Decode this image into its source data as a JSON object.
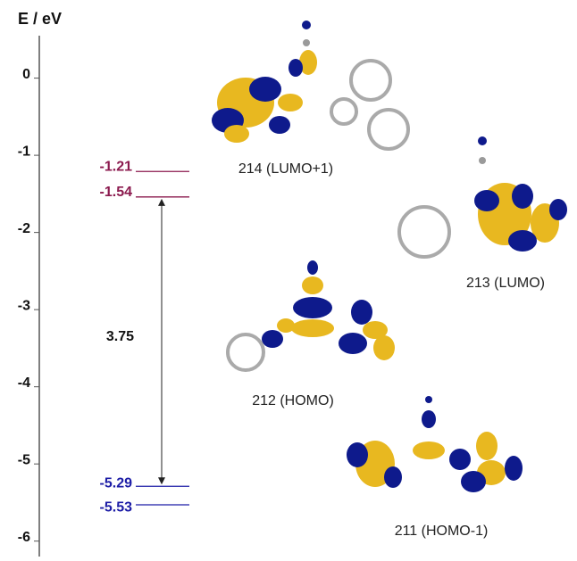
{
  "chart_data": {
    "type": "energy-levels",
    "title": "E / eV",
    "ylim": [
      -6.2,
      0.55
    ],
    "yticks": [
      0,
      -1,
      -2,
      -3,
      -4,
      -5,
      -6
    ],
    "levels": [
      {
        "color": "#8b1a4e",
        "values": [
          -1.21,
          -1.54
        ]
      },
      {
        "color": "#1c1ca6",
        "values": [
          -5.29,
          -5.53
        ]
      }
    ],
    "gap": 3.75,
    "orbitals": [
      "214 (LUMO+1)",
      "213 (LUMO)",
      "212 (HOMO)",
      "211 (HOMO-1)"
    ]
  }
}
